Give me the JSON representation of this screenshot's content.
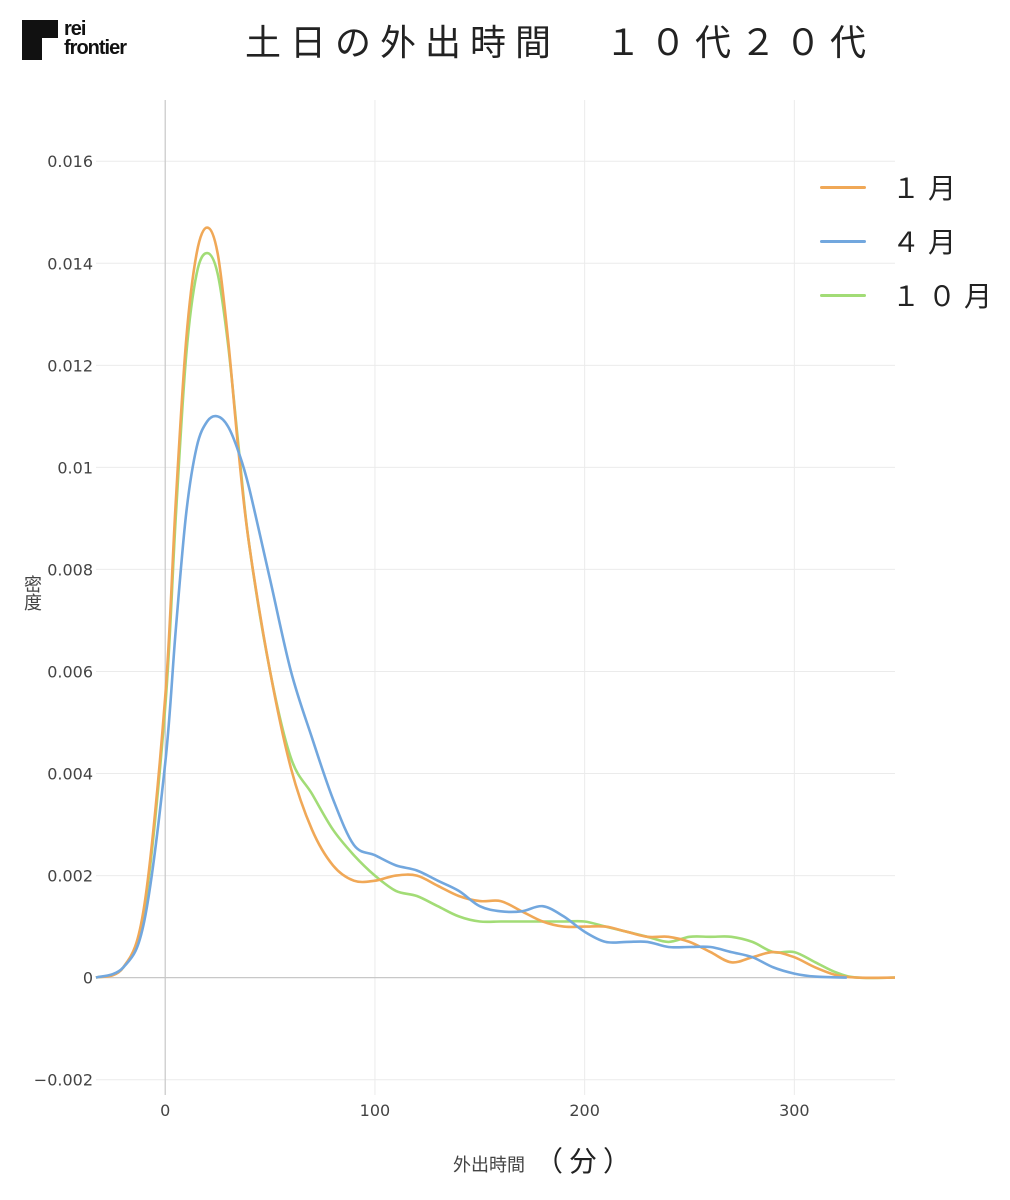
{
  "brand": {
    "line1": "rei",
    "line2": "frontier"
  },
  "chart_data": {
    "type": "line",
    "title": "土日の外出時間　１０代２０代",
    "xlabel": "外出時間",
    "xlabel_unit": "（分）",
    "ylabel": "密度",
    "xlim": [
      -33,
      348
    ],
    "ylim": [
      -0.0023,
      0.0172
    ],
    "x_ticks": [
      0,
      100,
      200,
      300
    ],
    "y_ticks": [
      -0.002,
      0,
      0.002,
      0.004,
      0.006,
      0.008,
      0.01,
      0.012,
      0.014,
      0.016
    ],
    "y_tick_labels": [
      "−0.002",
      "0",
      "0.002",
      "0.004",
      "0.006",
      "0.008",
      "0.01",
      "0.012",
      "0.014",
      "0.016"
    ],
    "grid": true,
    "legend_position": "top-right",
    "series": [
      {
        "name": "１月",
        "color": "#F0A857",
        "x": [
          -33,
          -20,
          -10,
          0,
          5,
          10,
          15,
          20,
          25,
          30,
          35,
          40,
          50,
          60,
          70,
          80,
          90,
          100,
          110,
          120,
          130,
          140,
          150,
          160,
          170,
          180,
          190,
          200,
          210,
          220,
          230,
          240,
          250,
          260,
          270,
          280,
          290,
          300,
          310,
          320,
          330,
          348
        ],
        "y": [
          0,
          0.0002,
          0.0014,
          0.0055,
          0.0093,
          0.0125,
          0.0142,
          0.0147,
          0.0142,
          0.0125,
          0.0103,
          0.0085,
          0.006,
          0.0041,
          0.0029,
          0.0022,
          0.0019,
          0.0019,
          0.002,
          0.002,
          0.0018,
          0.0016,
          0.0015,
          0.0015,
          0.0013,
          0.0011,
          0.001,
          0.001,
          0.001,
          0.0009,
          0.0008,
          0.0008,
          0.0007,
          0.0005,
          0.0003,
          0.0004,
          0.0005,
          0.0004,
          0.0002,
          5e-05,
          0,
          0
        ]
      },
      {
        "name": "４月",
        "color": "#72A7DE",
        "x": [
          -33,
          -20,
          -10,
          0,
          5,
          10,
          15,
          20,
          25,
          30,
          35,
          40,
          50,
          60,
          70,
          80,
          90,
          100,
          110,
          120,
          130,
          140,
          150,
          160,
          170,
          180,
          190,
          200,
          210,
          220,
          230,
          240,
          250,
          260,
          270,
          280,
          290,
          300,
          310,
          325
        ],
        "y": [
          0,
          0.0002,
          0.0011,
          0.0042,
          0.0068,
          0.0091,
          0.0104,
          0.0109,
          0.011,
          0.0108,
          0.0103,
          0.0096,
          0.0078,
          0.006,
          0.0047,
          0.0035,
          0.0026,
          0.0024,
          0.0022,
          0.0021,
          0.0019,
          0.0017,
          0.0014,
          0.0013,
          0.0013,
          0.0014,
          0.0012,
          0.0009,
          0.0007,
          0.0007,
          0.0007,
          0.0006,
          0.0006,
          0.0006,
          0.0005,
          0.0004,
          0.0002,
          8e-05,
          2e-05,
          0
        ]
      },
      {
        "name": "１０月",
        "color": "#A2DC76",
        "x": [
          -33,
          -20,
          -10,
          0,
          5,
          10,
          15,
          20,
          25,
          30,
          35,
          40,
          50,
          60,
          70,
          80,
          90,
          100,
          110,
          120,
          130,
          140,
          150,
          160,
          170,
          180,
          190,
          200,
          210,
          220,
          230,
          240,
          250,
          260,
          270,
          280,
          290,
          300,
          310,
          320,
          330,
          348
        ],
        "y": [
          0,
          0.0002,
          0.0013,
          0.0053,
          0.009,
          0.0122,
          0.0138,
          0.0142,
          0.0138,
          0.0124,
          0.0104,
          0.0085,
          0.006,
          0.0043,
          0.0036,
          0.0029,
          0.0024,
          0.002,
          0.0017,
          0.0016,
          0.0014,
          0.0012,
          0.0011,
          0.0011,
          0.0011,
          0.0011,
          0.0011,
          0.0011,
          0.001,
          0.0009,
          0.0008,
          0.0007,
          0.0008,
          0.0008,
          0.0008,
          0.0007,
          0.0005,
          0.0005,
          0.0003,
          0.0001,
          0,
          0
        ]
      }
    ]
  }
}
